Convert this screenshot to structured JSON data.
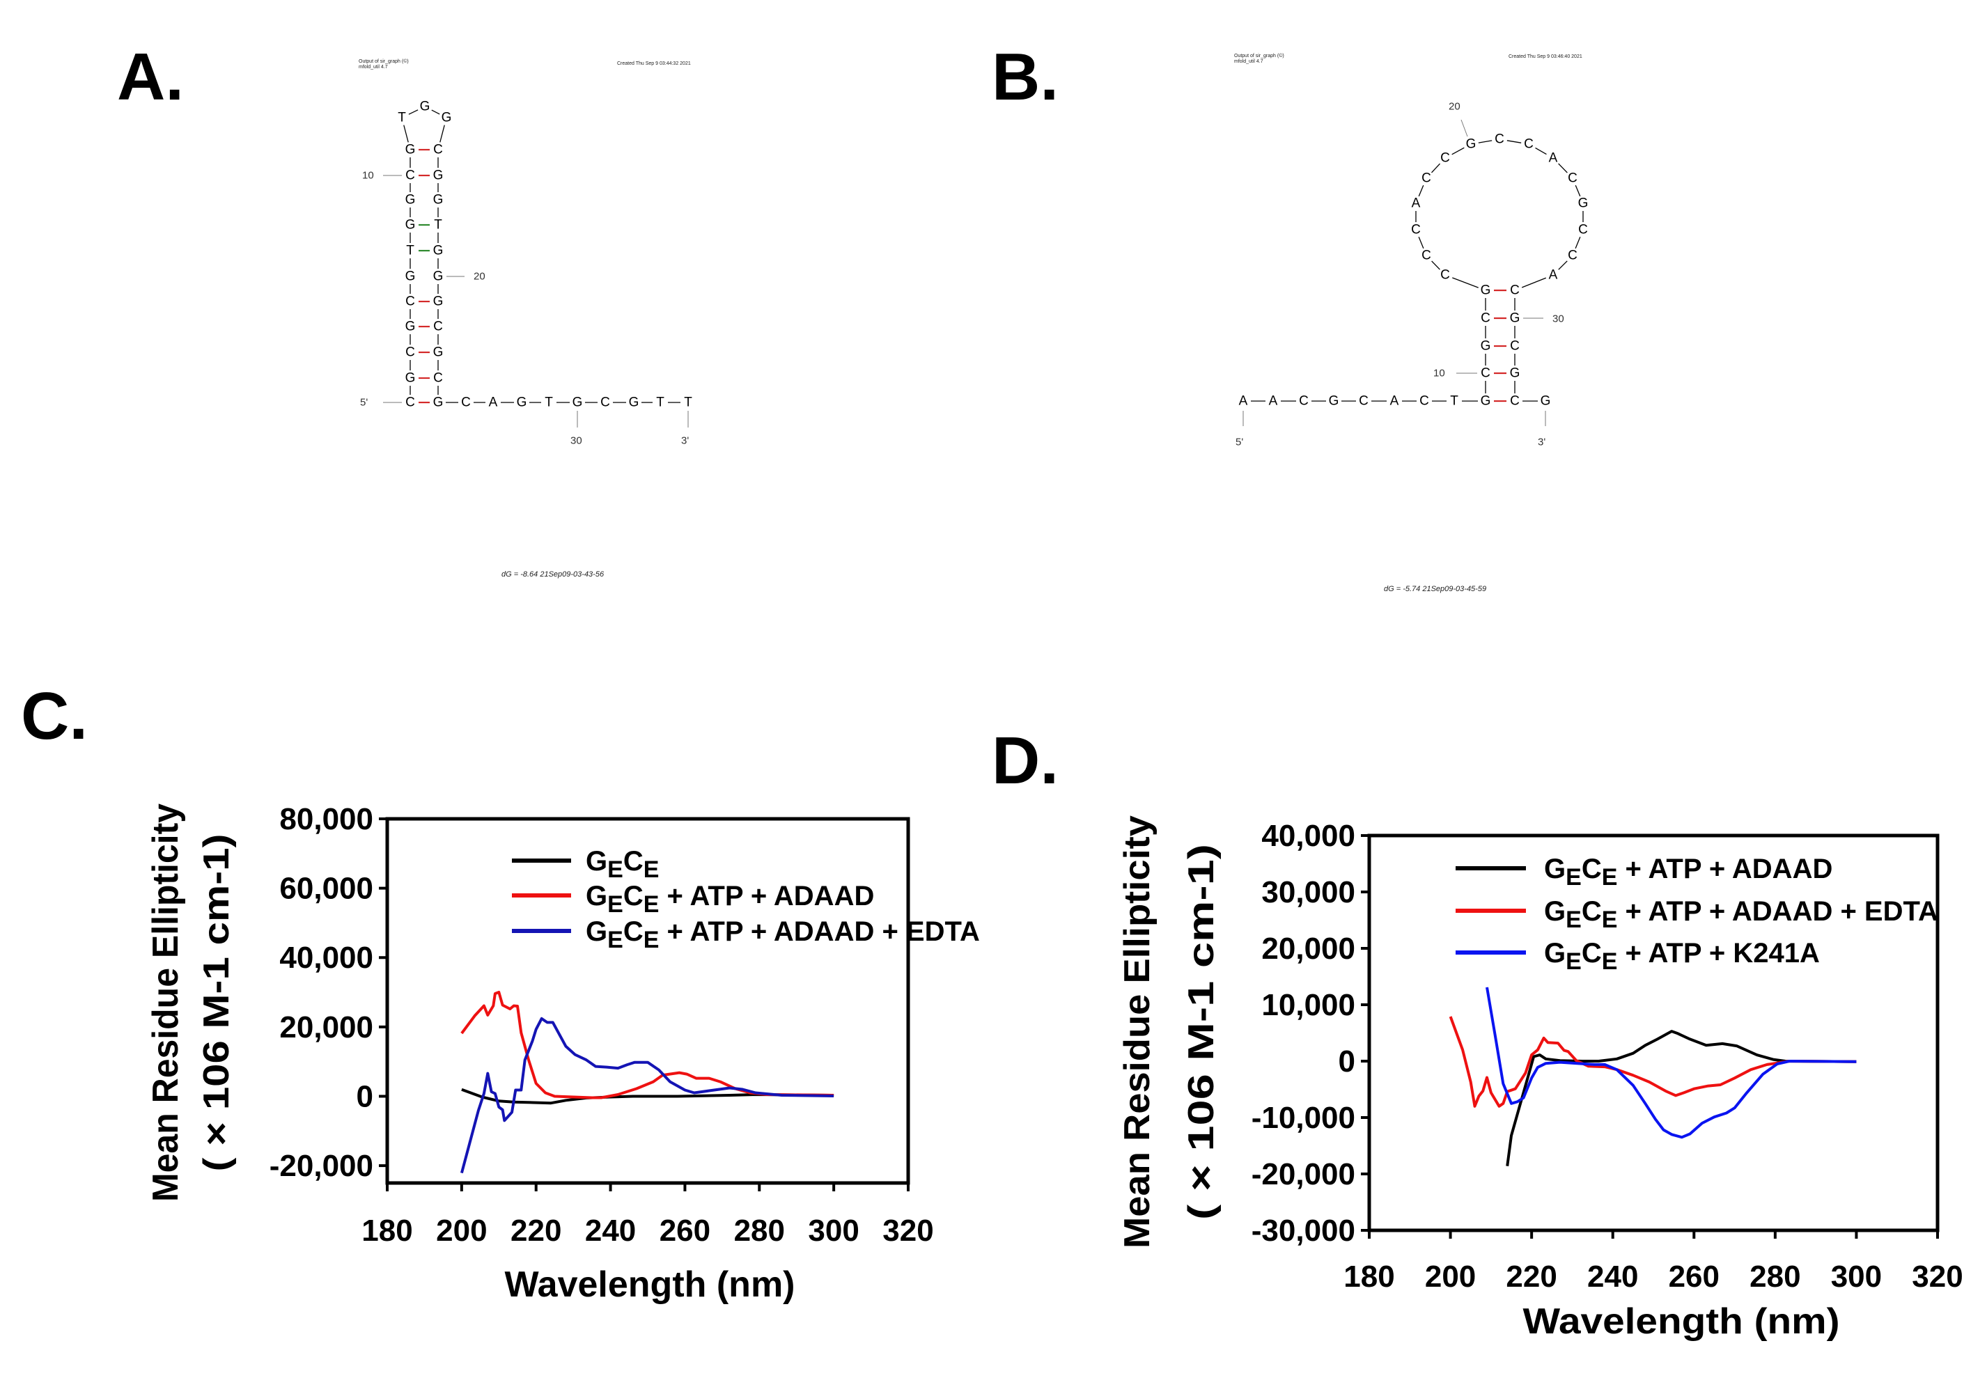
{
  "panels": {
    "a": "A.",
    "b": "B.",
    "c": "C.",
    "d": "D."
  },
  "structure_a": {
    "header_left_1": "Output of sir_graph (©)",
    "header_left_2": "mfold_util 4.7",
    "header_right": "Created Thu Sep  9 03:44:32 2021",
    "sequence": "CGCGCGTGGCGTGGCGGTGGGCGCGCAGTGCGTT",
    "pairs": [
      [
        1,
        25,
        "GC"
      ],
      [
        2,
        24,
        "GC"
      ],
      [
        3,
        23,
        "GC"
      ],
      [
        4,
        22,
        "GC"
      ],
      [
        5,
        21,
        "GC"
      ],
      [
        7,
        19,
        "GT"
      ],
      [
        8,
        18,
        "GT"
      ],
      [
        10,
        16,
        "GC"
      ],
      [
        11,
        15,
        "GC"
      ]
    ],
    "labels": {
      "n10": "10",
      "n20": "20",
      "n30": "30",
      "five_prime": "5'",
      "three_prime": "3'"
    },
    "dg": "dG = -8.64 21Sep09-03-43-56"
  },
  "structure_b": {
    "header_left_1": "Output of sir_graph (©)",
    "header_left_2": "mfold_util 4.7",
    "header_right": "Created Thu Sep  9 03:46:40 2021",
    "sequence": "AACGCACTGCGCGCCCACCGCCACGCCACGCGCG",
    "pairs": [
      [
        9,
        33,
        "GC"
      ],
      [
        10,
        32,
        "GC"
      ],
      [
        11,
        31,
        "GC"
      ],
      [
        12,
        30,
        "GC"
      ],
      [
        13,
        29,
        "GC"
      ]
    ],
    "labels": {
      "n10": "10",
      "n20": "20",
      "n30": "30",
      "five_prime": "5'",
      "three_prime": "3'"
    },
    "dg": "dG = -5.74 21Sep09-03-45-59"
  },
  "pair_colors": {
    "GC": "#d42a2a",
    "GT": "#2f8a2f"
  },
  "chart_data": [
    {
      "type": "line",
      "panel": "C.",
      "xlabel": "Wavelength (nm)",
      "ylabel": "Mean Residue Ellipticity",
      "ylabel2": "( × 106  M-1 cm-1)",
      "xlim": [
        180,
        320
      ],
      "ylim": [
        -25000,
        80000
      ],
      "xticks": [
        "180",
        "200",
        "220",
        "240",
        "260",
        "280",
        "300",
        "320"
      ],
      "yticks": [
        "80,000",
        "60,000",
        "40,000",
        "20,000",
        "0",
        "-20,000"
      ],
      "ytick_values": [
        80000,
        60000,
        40000,
        20000,
        0,
        -20000
      ],
      "grid": false,
      "legend": "top-right",
      "series": [
        {
          "name": "GECE",
          "color": "#000000",
          "x": [
            200,
            205.5,
            210,
            214,
            224,
            228,
            233.5,
            240,
            246,
            258,
            272,
            279,
            300
          ],
          "y": [
            1950,
            -200,
            -1370,
            -1660,
            -1950,
            -1170,
            -490,
            -200,
            0,
            0,
            300,
            500,
            300
          ]
        },
        {
          "name": "GECE + ATP + ADAAD",
          "color": "#ee1111",
          "x": [
            200,
            203.5,
            206,
            207,
            208.5,
            209,
            210,
            211,
            213,
            214,
            215,
            216,
            218,
            220,
            222.5,
            225,
            235,
            237.5,
            242,
            247,
            251.5,
            254,
            258.5,
            260.5,
            263,
            266.5,
            269.5,
            273.5,
            277.5,
            282,
            300
          ],
          "y": [
            18150,
            23200,
            26100,
            23400,
            26100,
            29600,
            30000,
            26300,
            25200,
            26100,
            26000,
            18300,
            10500,
            3700,
            1000,
            0,
            -400,
            -400,
            500,
            2200,
            4200,
            6100,
            6800,
            6400,
            5200,
            5200,
            4200,
            2200,
            1000,
            500,
            300
          ]
        },
        {
          "name": "GECE + ATP + ADAAD + EDTA",
          "color": "#1414b4",
          "x": [
            200,
            204.5,
            206,
            207,
            208,
            209,
            210,
            211,
            211.5,
            213.5,
            214.5,
            216,
            217,
            219,
            220,
            221.5,
            223,
            224.5,
            228,
            230.5,
            233.5,
            236,
            239,
            242,
            244.5,
            246.5,
            250,
            253,
            256,
            260,
            262.5,
            266.5,
            272,
            275.5,
            279,
            286,
            300
          ],
          "y": [
            -22100,
            -4100,
            800,
            6600,
            1300,
            800,
            -3100,
            -3900,
            -7000,
            -4600,
            1800,
            1800,
            10500,
            15900,
            19300,
            22400,
            21300,
            21300,
            14400,
            12000,
            10500,
            8600,
            8400,
            8100,
            9100,
            9800,
            9800,
            7600,
            4200,
            1800,
            1000,
            1600,
            2400,
            2000,
            1000,
            300,
            100
          ]
        }
      ]
    },
    {
      "type": "line",
      "panel": "D.",
      "xlabel": "Wavelength (nm)",
      "ylabel": "Mean Residue Ellipticity",
      "ylabel2": "( × 106  M-1 cm-1)",
      "xlim": [
        180,
        320
      ],
      "ylim": [
        -30000,
        40000
      ],
      "xticks": [
        "180",
        "200",
        "220",
        "240",
        "260",
        "280",
        "300",
        "320"
      ],
      "yticks": [
        "40,000",
        "30,000",
        "20,000",
        "10,000",
        "0",
        "-10,000",
        "-20,000",
        "-30,000"
      ],
      "ytick_values": [
        40000,
        30000,
        20000,
        10000,
        0,
        -10000,
        -20000,
        -30000
      ],
      "grid": false,
      "legend": "top-right",
      "series": [
        {
          "name": "GECE + ATP + ADAAD",
          "color": "#000000",
          "x": [
            214,
            215,
            217,
            219.5,
            220.5,
            222,
            223.5,
            227,
            232.5,
            236.5,
            241,
            245,
            248,
            251,
            254.5,
            256,
            259,
            263,
            267,
            270.5,
            275.5,
            279.5,
            282.5,
            300
          ],
          "y": [
            -18600,
            -13200,
            -8100,
            -1800,
            800,
            1100,
            400,
            100,
            0,
            0,
            400,
            1400,
            2800,
            3900,
            5300,
            4900,
            3900,
            2800,
            3100,
            2700,
            1100,
            300,
            0,
            -100
          ]
        },
        {
          "name": "GECE + ATP + ADAAD + EDTA",
          "color": "#ee1111",
          "x": [
            200,
            203,
            205,
            206,
            207,
            208,
            209,
            210,
            212,
            213,
            214,
            216,
            218.5,
            220,
            221.5,
            223,
            224,
            226.5,
            228,
            229,
            231,
            234,
            238,
            241,
            245,
            249,
            253,
            255.5,
            257.5,
            260,
            263.5,
            266.5,
            270,
            274,
            278,
            283.5,
            300
          ],
          "y": [
            7900,
            2000,
            -3700,
            -8000,
            -6200,
            -5300,
            -2900,
            -5600,
            -8000,
            -7500,
            -5400,
            -4900,
            -2100,
            1100,
            2000,
            4100,
            3300,
            3200,
            1900,
            1700,
            100,
            -900,
            -1000,
            -1500,
            -2500,
            -3700,
            -5300,
            -6100,
            -5600,
            -4900,
            -4400,
            -4200,
            -3000,
            -1500,
            -600,
            0,
            -100
          ]
        },
        {
          "name": "GECE + ATP + K241A",
          "color": "#0a14f0",
          "x": [
            209,
            211,
            213,
            215,
            216.5,
            218,
            220,
            221.5,
            223.5,
            227,
            235.5,
            238,
            241,
            245,
            248,
            250.5,
            252.5,
            254.5,
            257,
            259,
            262,
            265,
            268,
            270,
            273,
            277,
            280.5,
            283.5,
            300
          ],
          "y": [
            13100,
            4600,
            -4000,
            -7500,
            -7200,
            -6500,
            -3000,
            -1100,
            -400,
            -200,
            -600,
            -600,
            -1500,
            -4300,
            -7500,
            -10300,
            -12200,
            -13000,
            -13500,
            -12900,
            -11000,
            -9900,
            -9200,
            -8300,
            -5600,
            -2300,
            -500,
            0,
            -100
          ]
        }
      ]
    }
  ]
}
